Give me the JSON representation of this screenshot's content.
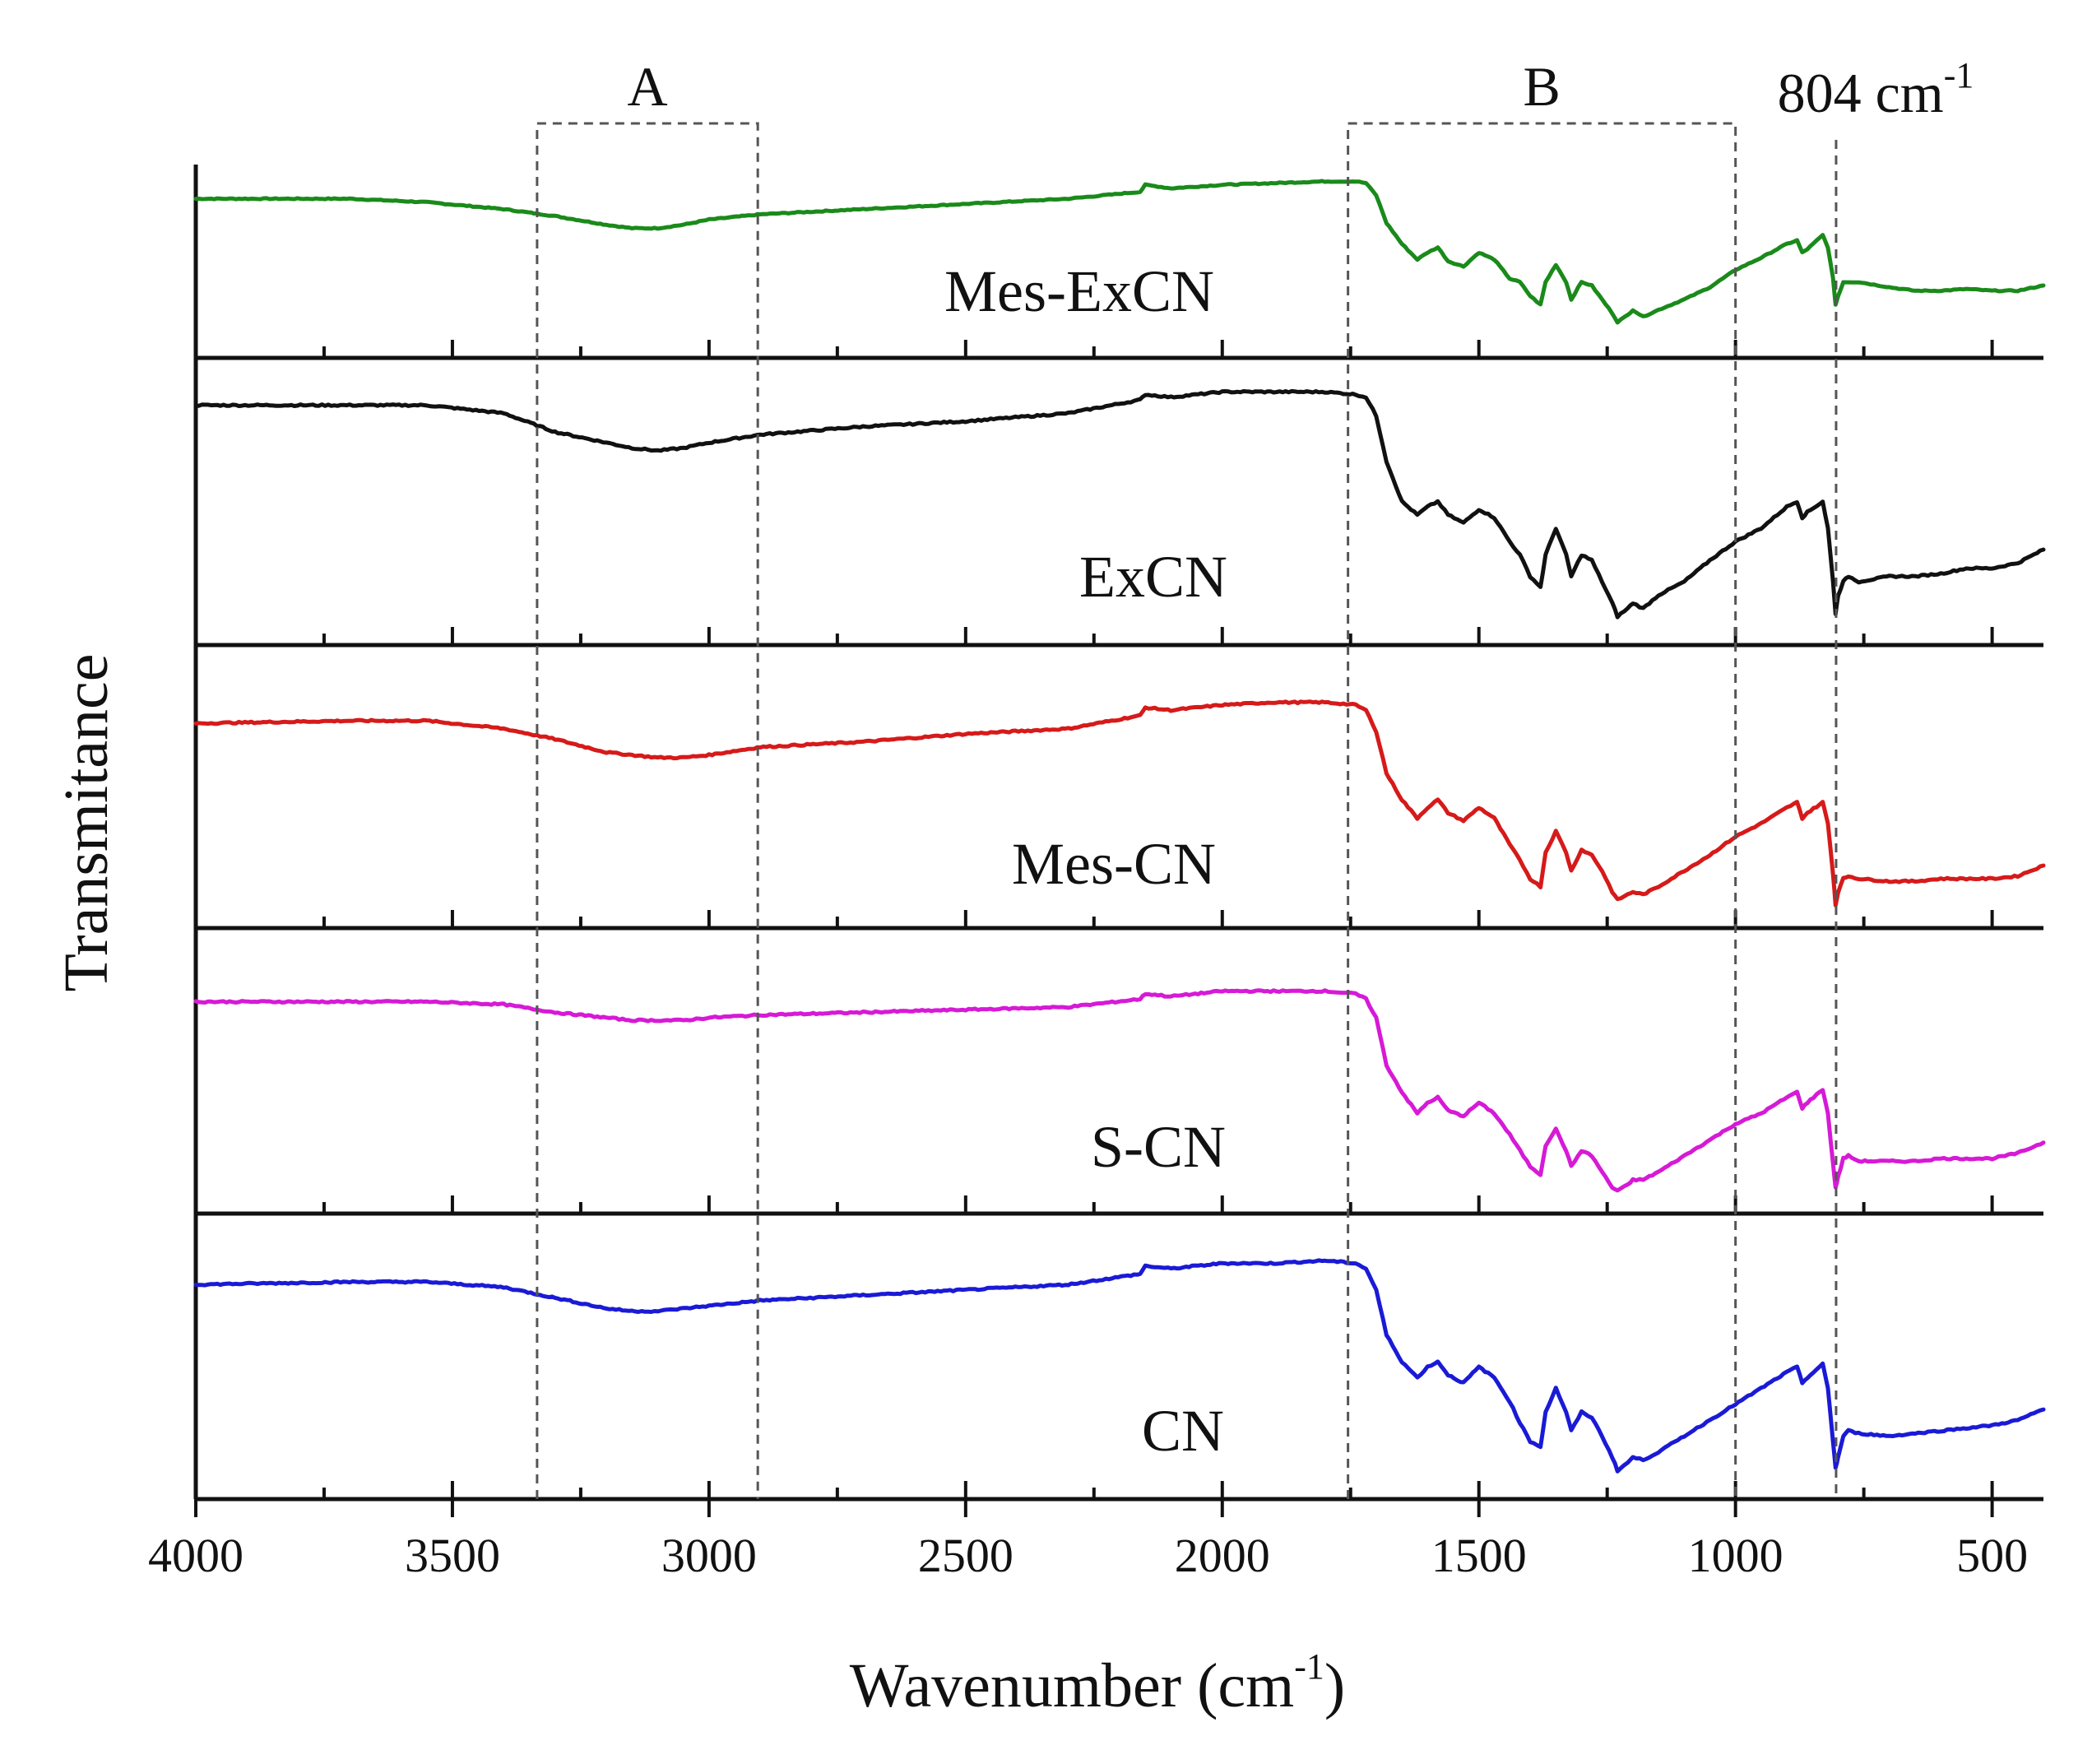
{
  "chart_data": {
    "type": "line",
    "title": "",
    "xlabel": "Wavenumber (cm",
    "xlabel_sup": "-1",
    "xlabel_close": ")",
    "ylabel": "Transmitance",
    "xlim": [
      4000,
      400
    ],
    "x_reversed": true,
    "x_ticks": [
      4000,
      3500,
      3000,
      2500,
      2000,
      1500,
      1000,
      500
    ],
    "x_tick_labels": [
      "4000",
      "3500",
      "3000",
      "2500",
      "2000",
      "1500",
      "1000",
      "500"
    ],
    "y_ticks_shown": false,
    "panels": 5,
    "regions": [
      {
        "label": "A",
        "x_start": 3335,
        "x_end": 2905
      },
      {
        "label": "B",
        "x_start": 1755,
        "x_end": 1000
      }
    ],
    "marker_line": {
      "x": 804,
      "label": "804 cm",
      "label_sup": "-1"
    },
    "series": [
      {
        "name": "Mes-ExCN",
        "color": "#1a8a1a",
        "panel": 0,
        "noise": 0.003,
        "x": [
          4000,
          3700,
          3550,
          3400,
          3300,
          3200,
          3150,
          3100,
          3050,
          3000,
          2900,
          2700,
          2500,
          2300,
          2160,
          2150,
          2100,
          2000,
          1900,
          1800,
          1740,
          1720,
          1700,
          1680,
          1650,
          1620,
          1600,
          1580,
          1560,
          1530,
          1500,
          1470,
          1440,
          1420,
          1400,
          1380,
          1370,
          1350,
          1330,
          1320,
          1300,
          1280,
          1260,
          1240,
          1230,
          1210,
          1200,
          1180,
          1150,
          1100,
          1050,
          1000,
          950,
          900,
          880,
          870,
          860,
          830,
          820,
          810,
          805,
          800,
          790,
          780,
          760,
          700,
          650,
          600,
          550,
          500,
          450,
          400
        ],
        "y": [
          0.86,
          0.86,
          0.84,
          0.8,
          0.76,
          0.71,
          0.69,
          0.69,
          0.71,
          0.74,
          0.77,
          0.8,
          0.83,
          0.86,
          0.9,
          0.94,
          0.92,
          0.94,
          0.95,
          0.96,
          0.96,
          0.95,
          0.88,
          0.72,
          0.6,
          0.51,
          0.55,
          0.58,
          0.5,
          0.47,
          0.55,
          0.51,
          0.4,
          0.38,
          0.3,
          0.25,
          0.38,
          0.48,
          0.38,
          0.28,
          0.38,
          0.36,
          0.28,
          0.2,
          0.15,
          0.19,
          0.22,
          0.18,
          0.22,
          0.28,
          0.35,
          0.45,
          0.52,
          0.6,
          0.62,
          0.55,
          0.57,
          0.65,
          0.58,
          0.4,
          0.25,
          0.3,
          0.38,
          0.38,
          0.38,
          0.35,
          0.33,
          0.33,
          0.34,
          0.33,
          0.33,
          0.36
        ]
      },
      {
        "name": "ExCN",
        "color": "#111111",
        "panel": 1,
        "noise": 0.003,
        "x": [
          4000,
          3700,
          3550,
          3400,
          3300,
          3200,
          3150,
          3100,
          3050,
          3000,
          2900,
          2700,
          2500,
          2300,
          2160,
          2150,
          2100,
          2000,
          1900,
          1800,
          1740,
          1720,
          1700,
          1680,
          1650,
          1620,
          1600,
          1580,
          1560,
          1530,
          1500,
          1470,
          1440,
          1420,
          1400,
          1380,
          1370,
          1350,
          1330,
          1320,
          1300,
          1280,
          1260,
          1240,
          1230,
          1210,
          1200,
          1180,
          1150,
          1100,
          1050,
          1000,
          950,
          900,
          880,
          870,
          860,
          830,
          820,
          810,
          805,
          800,
          790,
          780,
          760,
          700,
          650,
          600,
          550,
          500,
          450,
          400
        ],
        "y": [
          0.86,
          0.86,
          0.86,
          0.83,
          0.76,
          0.72,
          0.7,
          0.69,
          0.7,
          0.72,
          0.75,
          0.78,
          0.8,
          0.83,
          0.88,
          0.9,
          0.89,
          0.91,
          0.91,
          0.91,
          0.9,
          0.89,
          0.82,
          0.65,
          0.5,
          0.45,
          0.48,
          0.5,
          0.45,
          0.42,
          0.47,
          0.44,
          0.35,
          0.3,
          0.22,
          0.18,
          0.3,
          0.4,
          0.3,
          0.22,
          0.3,
          0.28,
          0.2,
          0.12,
          0.07,
          0.1,
          0.12,
          0.1,
          0.15,
          0.2,
          0.28,
          0.35,
          0.4,
          0.48,
          0.5,
          0.44,
          0.46,
          0.5,
          0.4,
          0.2,
          0.08,
          0.15,
          0.2,
          0.22,
          0.2,
          0.22,
          0.22,
          0.23,
          0.25,
          0.25,
          0.27,
          0.32
        ]
      },
      {
        "name": "Mes-CN",
        "color": "#d61a1a",
        "panel": 2,
        "noise": 0.003,
        "x": [
          4000,
          3700,
          3550,
          3400,
          3300,
          3200,
          3150,
          3100,
          3050,
          3000,
          2900,
          2700,
          2500,
          2300,
          2160,
          2150,
          2100,
          2000,
          1900,
          1800,
          1740,
          1720,
          1700,
          1680,
          1650,
          1620,
          1600,
          1580,
          1560,
          1530,
          1500,
          1470,
          1440,
          1420,
          1400,
          1380,
          1370,
          1350,
          1330,
          1320,
          1300,
          1280,
          1260,
          1240,
          1230,
          1210,
          1200,
          1180,
          1150,
          1100,
          1050,
          1000,
          950,
          900,
          880,
          870,
          860,
          830,
          820,
          810,
          805,
          800,
          790,
          780,
          760,
          700,
          650,
          600,
          550,
          500,
          450,
          400
        ],
        "y": [
          0.74,
          0.75,
          0.75,
          0.72,
          0.68,
          0.63,
          0.62,
          0.61,
          0.61,
          0.62,
          0.65,
          0.67,
          0.7,
          0.72,
          0.77,
          0.8,
          0.79,
          0.81,
          0.82,
          0.82,
          0.81,
          0.79,
          0.71,
          0.55,
          0.45,
          0.38,
          0.42,
          0.45,
          0.4,
          0.37,
          0.42,
          0.38,
          0.28,
          0.22,
          0.15,
          0.12,
          0.25,
          0.33,
          0.25,
          0.18,
          0.26,
          0.24,
          0.18,
          0.1,
          0.07,
          0.09,
          0.1,
          0.09,
          0.12,
          0.18,
          0.24,
          0.31,
          0.36,
          0.42,
          0.44,
          0.38,
          0.4,
          0.44,
          0.36,
          0.17,
          0.05,
          0.1,
          0.15,
          0.16,
          0.15,
          0.14,
          0.14,
          0.15,
          0.15,
          0.15,
          0.16,
          0.2
        ]
      },
      {
        "name": "S-CN",
        "color": "#d61ad6",
        "panel": 3,
        "noise": 0.003,
        "x": [
          4000,
          3700,
          3550,
          3400,
          3300,
          3200,
          3150,
          3100,
          3050,
          3000,
          2900,
          2700,
          2500,
          2300,
          2160,
          2150,
          2100,
          2000,
          1900,
          1800,
          1740,
          1720,
          1700,
          1680,
          1650,
          1620,
          1600,
          1580,
          1560,
          1530,
          1500,
          1470,
          1440,
          1420,
          1400,
          1380,
          1370,
          1350,
          1330,
          1320,
          1300,
          1280,
          1260,
          1240,
          1230,
          1210,
          1200,
          1180,
          1150,
          1100,
          1050,
          1000,
          950,
          900,
          880,
          870,
          860,
          830,
          820,
          810,
          805,
          800,
          790,
          780,
          760,
          700,
          650,
          600,
          550,
          500,
          450,
          400
        ],
        "y": [
          0.76,
          0.76,
          0.76,
          0.75,
          0.72,
          0.7,
          0.69,
          0.69,
          0.69,
          0.7,
          0.71,
          0.72,
          0.73,
          0.74,
          0.77,
          0.79,
          0.78,
          0.8,
          0.8,
          0.8,
          0.79,
          0.77,
          0.7,
          0.52,
          0.42,
          0.34,
          0.38,
          0.4,
          0.35,
          0.33,
          0.38,
          0.34,
          0.26,
          0.2,
          0.14,
          0.11,
          0.22,
          0.28,
          0.2,
          0.14,
          0.2,
          0.18,
          0.12,
          0.06,
          0.05,
          0.07,
          0.09,
          0.09,
          0.12,
          0.18,
          0.24,
          0.3,
          0.34,
          0.4,
          0.42,
          0.36,
          0.38,
          0.43,
          0.34,
          0.15,
          0.06,
          0.1,
          0.17,
          0.18,
          0.16,
          0.16,
          0.16,
          0.17,
          0.17,
          0.17,
          0.19,
          0.23
        ]
      },
      {
        "name": "CN",
        "color": "#1a1ad6",
        "panel": 4,
        "noise": 0.003,
        "x": [
          4000,
          3700,
          3550,
          3400,
          3300,
          3200,
          3150,
          3100,
          3050,
          3000,
          2900,
          2700,
          2500,
          2300,
          2160,
          2150,
          2100,
          2000,
          1900,
          1800,
          1740,
          1720,
          1700,
          1680,
          1650,
          1620,
          1600,
          1580,
          1560,
          1530,
          1500,
          1470,
          1440,
          1420,
          1400,
          1380,
          1370,
          1350,
          1330,
          1320,
          1300,
          1280,
          1260,
          1240,
          1230,
          1210,
          1200,
          1180,
          1150,
          1100,
          1050,
          1000,
          950,
          900,
          880,
          870,
          860,
          830,
          820,
          810,
          805,
          800,
          790,
          780,
          760,
          700,
          650,
          600,
          550,
          500,
          450,
          400
        ],
        "y": [
          0.77,
          0.78,
          0.78,
          0.76,
          0.72,
          0.68,
          0.67,
          0.67,
          0.68,
          0.69,
          0.71,
          0.73,
          0.75,
          0.77,
          0.81,
          0.84,
          0.83,
          0.85,
          0.85,
          0.86,
          0.85,
          0.83,
          0.75,
          0.58,
          0.48,
          0.42,
          0.46,
          0.48,
          0.43,
          0.4,
          0.46,
          0.42,
          0.33,
          0.25,
          0.18,
          0.16,
          0.29,
          0.38,
          0.29,
          0.22,
          0.29,
          0.27,
          0.2,
          0.12,
          0.07,
          0.1,
          0.12,
          0.11,
          0.14,
          0.2,
          0.26,
          0.32,
          0.38,
          0.44,
          0.46,
          0.4,
          0.42,
          0.47,
          0.38,
          0.18,
          0.08,
          0.12,
          0.2,
          0.22,
          0.21,
          0.2,
          0.21,
          0.22,
          0.23,
          0.24,
          0.26,
          0.3
        ]
      }
    ]
  }
}
